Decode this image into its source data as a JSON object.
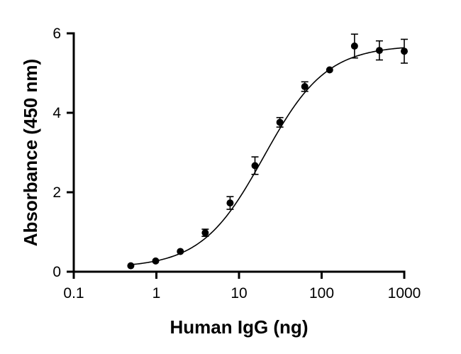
{
  "chart_data": {
    "type": "scatter",
    "title": "",
    "xlabel": "Human IgG (ng)",
    "ylabel": "Absorbance (450 nm)",
    "x_scale": "log",
    "xlim": [
      0.1,
      1000
    ],
    "ylim": [
      0,
      6
    ],
    "x_ticks": [
      0.1,
      1,
      10,
      100,
      1000
    ],
    "x_tick_labels": [
      "0.1",
      "1",
      "10",
      "100",
      "1000"
    ],
    "y_ticks": [
      0,
      2,
      4,
      6
    ],
    "y_tick_labels": [
      "0",
      "2",
      "4",
      "6"
    ],
    "grid": false,
    "legend": "none",
    "series": [
      {
        "x": [
          0.49,
          0.98,
          1.95,
          3.9,
          7.8,
          15.6,
          31.25,
          62.5,
          125,
          250,
          500,
          1000
        ],
        "y": [
          0.15,
          0.27,
          0.51,
          0.98,
          1.73,
          2.67,
          3.76,
          4.66,
          5.08,
          5.68,
          5.57,
          5.55
        ],
        "err": [
          0.02,
          0.03,
          0.04,
          0.09,
          0.16,
          0.22,
          0.12,
          0.12,
          0.07,
          0.3,
          0.24,
          0.3
        ]
      }
    ],
    "fit": {
      "model": "4PL",
      "bottom": 0.1,
      "top": 5.7,
      "ec50": 20,
      "hill": 1.15
    }
  }
}
